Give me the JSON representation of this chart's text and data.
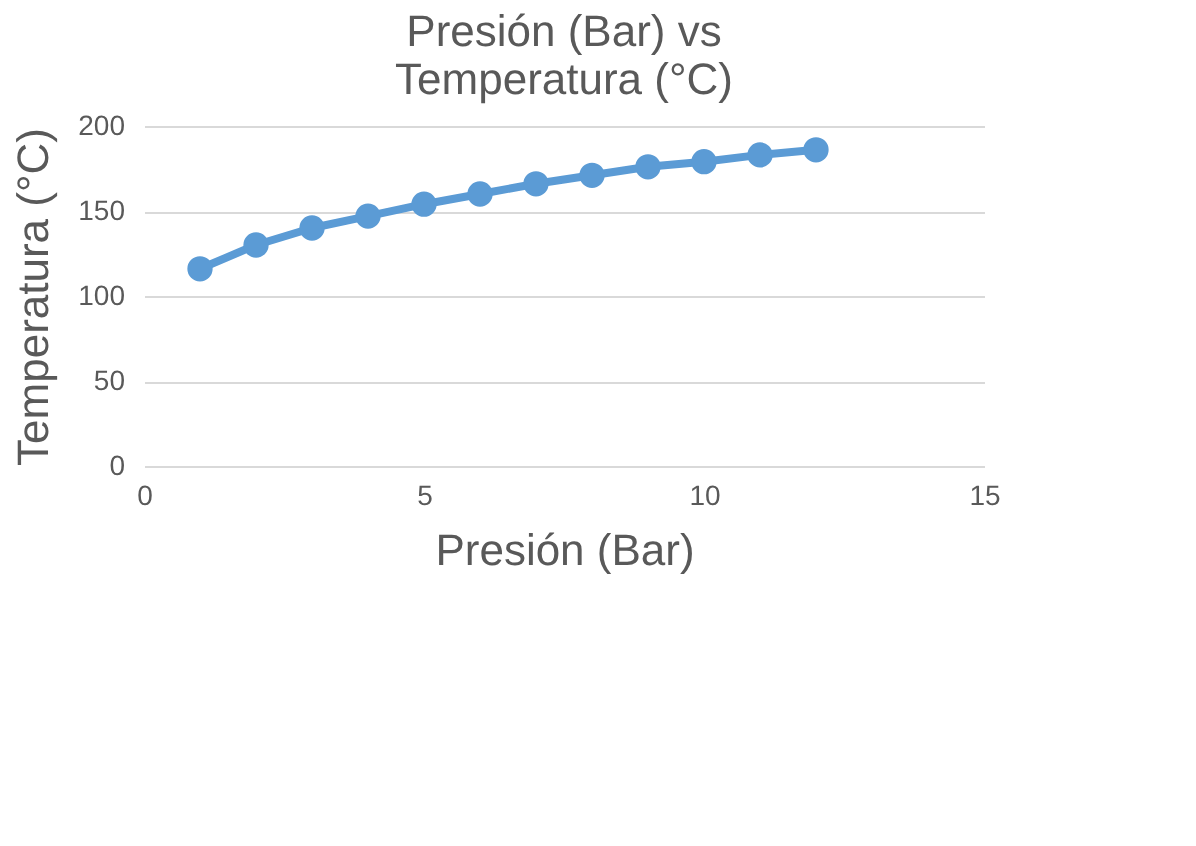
{
  "chart_data": {
    "type": "line",
    "title": "Presión (Bar) vs Temperatura (°C)",
    "xlabel": "Presión (Bar)",
    "ylabel": "Temperatura (°C)",
    "x": [
      1,
      2,
      3,
      4,
      5,
      6,
      7,
      8,
      9,
      10,
      11,
      12
    ],
    "series": [
      {
        "color": "#5b9bd5",
        "values": [
          116,
          130,
          140,
          147,
          154,
          160,
          166,
          171,
          176,
          179,
          183,
          186
        ]
      }
    ],
    "xlim": [
      0,
      15
    ],
    "xticks": [
      0,
      5,
      10,
      15
    ],
    "ylim": [
      0,
      200
    ],
    "yticks": [
      0,
      50,
      100,
      150,
      200
    ],
    "grid": "y",
    "marker": "circle",
    "line_style": "solid"
  }
}
